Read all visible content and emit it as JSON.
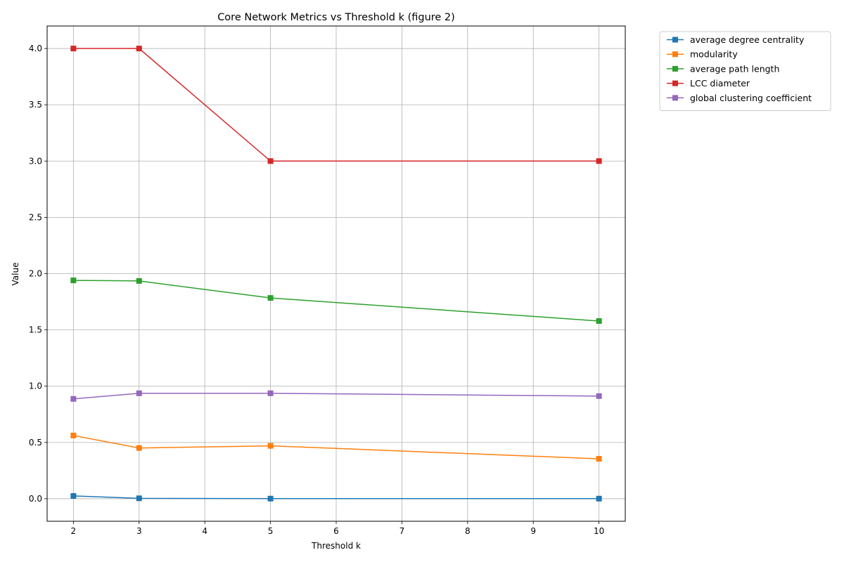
{
  "chart_data": {
    "type": "line",
    "title": "Core Network Metrics vs Threshold k (figure 2)",
    "xlabel": "Threshold k",
    "ylabel": "Value",
    "x": [
      2,
      3,
      5,
      10
    ],
    "xlim": [
      1.6,
      10.4
    ],
    "ylim": [
      -0.2,
      4.2
    ],
    "xticks": [
      "2",
      "3",
      "4",
      "5",
      "6",
      "7",
      "8",
      "9",
      "10"
    ],
    "yticks": [
      "0.0",
      "0.5",
      "1.0",
      "1.5",
      "2.0",
      "2.5",
      "3.0",
      "3.5",
      "4.0"
    ],
    "grid": true,
    "legend_position": "outside top-right",
    "marker": "square",
    "series": [
      {
        "name": "average degree centrality",
        "color": "#1f77b4",
        "values": [
          0.025,
          0.004,
          0.001,
          0.001
        ]
      },
      {
        "name": "modularity",
        "color": "#ff7f0e",
        "values": [
          0.562,
          0.451,
          0.47,
          0.355
        ]
      },
      {
        "name": "average path length",
        "color": "#2ca02c",
        "values": [
          1.94,
          1.935,
          1.784,
          1.579
        ]
      },
      {
        "name": "LCC diameter",
        "color": "#d62728",
        "values": [
          4.0,
          4.0,
          3.0,
          3.0
        ]
      },
      {
        "name": "global clustering coefficient",
        "color": "#9467bd",
        "values": [
          0.887,
          0.937,
          0.937,
          0.912
        ]
      }
    ]
  }
}
